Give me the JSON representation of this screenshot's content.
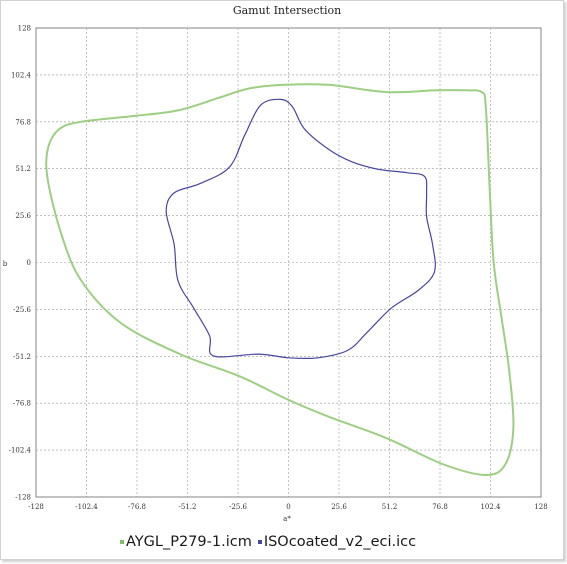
{
  "chart_data": {
    "type": "line",
    "title": "Gamut Intersection",
    "xlabel": "a*",
    "ylabel": "b",
    "xlim": [
      -128,
      128
    ],
    "ylim": [
      -128,
      128
    ],
    "x_ticks": [
      "-128",
      "-102.4",
      "-76.8",
      "-51.2",
      "-25.6",
      "0",
      "25.6",
      "51.2",
      "76.8",
      "102.4",
      "128"
    ],
    "y_ticks": [
      "128",
      "102.4",
      "76.8",
      "51.2",
      "25.6",
      "0",
      "-25.6",
      "-51.2",
      "-76.8",
      "-102.4",
      "-128"
    ],
    "grid": true,
    "legend_position": "bottom",
    "series": [
      {
        "name": "AYGL_P279-1.icm",
        "color": "#9ccf82",
        "points": [
          [
            -2,
            97
          ],
          [
            20,
            97
          ],
          [
            50,
            93
          ],
          [
            75,
            94
          ],
          [
            90,
            94
          ],
          [
            98,
            93
          ],
          [
            100,
            85
          ],
          [
            102,
            40
          ],
          [
            104,
            0
          ],
          [
            108,
            -30
          ],
          [
            112,
            -60
          ],
          [
            114,
            -90
          ],
          [
            110,
            -110
          ],
          [
            100,
            -116
          ],
          [
            78,
            -110
          ],
          [
            50,
            -96
          ],
          [
            20,
            -84
          ],
          [
            0,
            -75
          ],
          [
            -25,
            -62
          ],
          [
            -55,
            -50
          ],
          [
            -85,
            -33
          ],
          [
            -105,
            -10
          ],
          [
            -115,
            15
          ],
          [
            -122,
            45
          ],
          [
            -122,
            62
          ],
          [
            -116,
            73
          ],
          [
            -104,
            77
          ],
          [
            -78,
            80
          ],
          [
            -56,
            83
          ],
          [
            -35,
            90
          ],
          [
            -20,
            95
          ],
          [
            -2,
            97
          ]
        ]
      },
      {
        "name": "ISOcoated_v2_eci.icc",
        "color": "#4646a0",
        "points": [
          [
            -4,
            89
          ],
          [
            2,
            85
          ],
          [
            8,
            73
          ],
          [
            20,
            62
          ],
          [
            32,
            55
          ],
          [
            45,
            51
          ],
          [
            60,
            49
          ],
          [
            69,
            47
          ],
          [
            70,
            38
          ],
          [
            70,
            25
          ],
          [
            73,
            10
          ],
          [
            74,
            -5
          ],
          [
            66,
            -15
          ],
          [
            52,
            -25
          ],
          [
            40,
            -38
          ],
          [
            30,
            -48
          ],
          [
            15,
            -52
          ],
          [
            0,
            -52
          ],
          [
            -15,
            -50
          ],
          [
            -38,
            -51
          ],
          [
            -40,
            -40
          ],
          [
            -48,
            -25
          ],
          [
            -56,
            -10
          ],
          [
            -58,
            10
          ],
          [
            -62,
            28
          ],
          [
            -58,
            38
          ],
          [
            -45,
            43
          ],
          [
            -30,
            52
          ],
          [
            -22,
            70
          ],
          [
            -14,
            86
          ],
          [
            -4,
            89
          ]
        ]
      }
    ]
  }
}
